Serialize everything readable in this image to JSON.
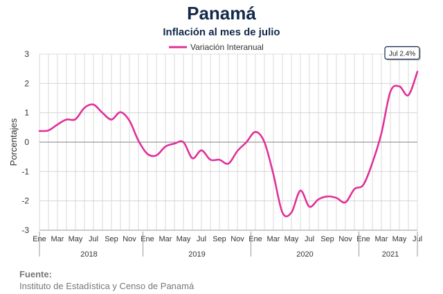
{
  "header": {
    "title": "Panamá",
    "subtitle": "Inflación al mes de julio"
  },
  "footer": {
    "source_label": "Fuente:",
    "source_text": "Instituto de Estadística y Censo de Panamá"
  },
  "chart_data": {
    "type": "line",
    "title": "Panamá",
    "subtitle": "Inflación al mes de julio",
    "ylabel": "Porcentajes",
    "xlabel": "",
    "ylim": [
      -3,
      3
    ],
    "yticks": [
      -3,
      -2,
      -1,
      0,
      1,
      2,
      3
    ],
    "grid": true,
    "legend_placement": "top-center",
    "colors": {
      "series": "#e0309a",
      "grid": "#d0d0d0",
      "zero_line": "#999999",
      "text": "#13294b"
    },
    "month_labels": [
      "Ene",
      "Mar",
      "May",
      "Jul",
      "Sep",
      "Nov"
    ],
    "month_label_positions": [
      0,
      2,
      4,
      6,
      8,
      10
    ],
    "years": [
      "2018",
      "2019",
      "2020",
      "2021"
    ],
    "x": [
      "Ene 2018",
      "Feb 2018",
      "Mar 2018",
      "Abr 2018",
      "May 2018",
      "Jun 2018",
      "Jul 2018",
      "Ago 2018",
      "Sep 2018",
      "Oct 2018",
      "Nov 2018",
      "Dic 2018",
      "Ene 2019",
      "Feb 2019",
      "Mar 2019",
      "Abr 2019",
      "May 2019",
      "Jun 2019",
      "Jul 2019",
      "Ago 2019",
      "Sep 2019",
      "Oct 2019",
      "Nov 2019",
      "Dic 2019",
      "Ene 2020",
      "Feb 2020",
      "Mar 2020",
      "Abr 2020",
      "May 2020",
      "Jun 2020",
      "Jul 2020",
      "Ago 2020",
      "Sep 2020",
      "Oct 2020",
      "Nov 2020",
      "Dic 2020",
      "Ene 2021",
      "Feb 2021",
      "Mar 2021",
      "Abr 2021",
      "May 2021",
      "Jun 2021",
      "Jul 2021"
    ],
    "series": [
      {
        "name": "Variación Interanual",
        "values": [
          0.38,
          0.4,
          0.6,
          0.77,
          0.78,
          1.17,
          1.28,
          1.0,
          0.77,
          1.02,
          0.73,
          0.05,
          -0.4,
          -0.45,
          -0.15,
          -0.05,
          0.0,
          -0.55,
          -0.28,
          -0.6,
          -0.6,
          -0.73,
          -0.3,
          0.0,
          0.35,
          0.0,
          -1.1,
          -2.4,
          -2.4,
          -1.65,
          -2.2,
          -1.95,
          -1.85,
          -1.9,
          -2.05,
          -1.6,
          -1.45,
          -0.7,
          0.3,
          1.72,
          1.9,
          1.6,
          2.4
        ]
      }
    ],
    "annotation": {
      "label": "Jul 2.4%",
      "target": "Jul 2021"
    }
  }
}
